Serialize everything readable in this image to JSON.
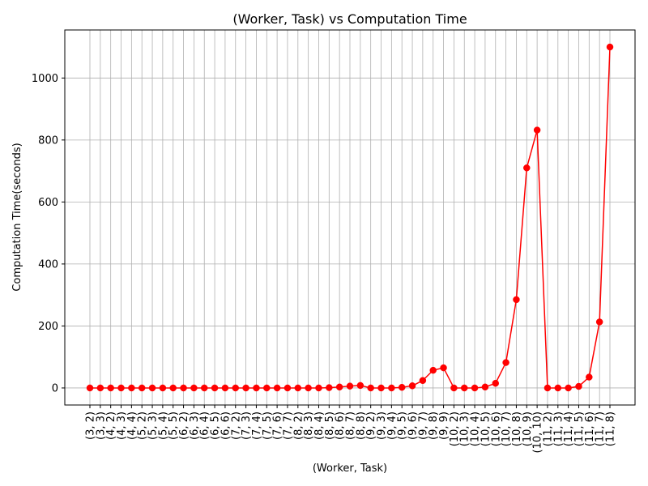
{
  "chart_data": {
    "type": "line",
    "title": "(Worker, Task) vs Computation Time",
    "xlabel": "(Worker, Task)",
    "ylabel": "Computation Time(seconds)",
    "grid": true,
    "ylim": [
      -55,
      1155
    ],
    "yticks": [
      0,
      200,
      400,
      600,
      800,
      1000
    ],
    "series_color": "#ff0000",
    "categories": [
      "(3, 2)",
      "(3, 3)",
      "(4, 2)",
      "(4, 3)",
      "(4, 4)",
      "(5, 2)",
      "(5, 3)",
      "(5, 4)",
      "(5, 5)",
      "(6, 2)",
      "(6, 3)",
      "(6, 4)",
      "(6, 5)",
      "(6, 6)",
      "(7, 2)",
      "(7, 3)",
      "(7, 4)",
      "(7, 5)",
      "(7, 6)",
      "(7, 7)",
      "(8, 2)",
      "(8, 3)",
      "(8, 4)",
      "(8, 5)",
      "(8, 6)",
      "(8, 7)",
      "(8, 8)",
      "(9, 2)",
      "(9, 3)",
      "(9, 4)",
      "(9, 5)",
      "(9, 6)",
      "(9, 7)",
      "(9, 8)",
      "(9, 9)",
      "(10, 2)",
      "(10, 3)",
      "(10, 4)",
      "(10, 5)",
      "(10, 6)",
      "(10, 7)",
      "(10, 8)",
      "(10, 9)",
      "(10, 10)",
      "(11, 2)",
      "(11, 3)",
      "(11, 4)",
      "(11, 5)",
      "(11, 6)",
      "(11, 7)",
      "(11, 8)"
    ],
    "values": [
      0,
      0,
      0,
      0,
      0,
      0,
      0,
      0,
      0,
      0,
      0,
      0,
      0,
      0,
      0,
      0,
      0,
      0,
      0,
      0,
      0,
      0,
      0,
      1,
      3,
      6,
      8,
      0,
      0,
      0,
      2,
      7,
      24,
      57,
      65,
      0,
      0,
      0,
      3,
      15,
      82,
      285,
      710,
      832,
      0,
      0,
      0,
      5,
      35,
      213,
      1100
    ]
  }
}
